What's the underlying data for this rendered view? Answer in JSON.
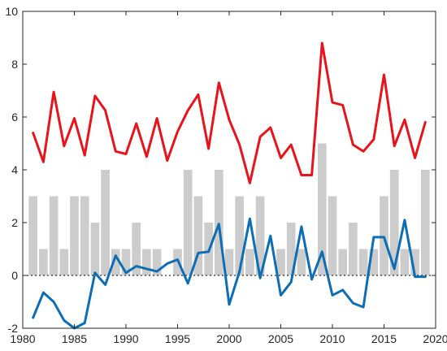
{
  "chart_data": {
    "type": "bar+line",
    "title": "",
    "xlabel": "",
    "ylabel": "",
    "xlim": [
      1980,
      2020
    ],
    "ylim": [
      -2,
      10
    ],
    "grid": false,
    "xticks": [
      1980,
      1985,
      1990,
      1995,
      2000,
      2005,
      2010,
      2015,
      2020
    ],
    "yticks": [
      -2,
      0,
      2,
      4,
      6,
      8,
      10
    ],
    "bars": {
      "color": "#cccccc",
      "x": [
        1981,
        1982,
        1983,
        1984,
        1985,
        1986,
        1987,
        1988,
        1989,
        1990,
        1991,
        1992,
        1993,
        1994,
        1995,
        1996,
        1997,
        1998,
        1999,
        2000,
        2001,
        2002,
        2003,
        2004,
        2005,
        2006,
        2007,
        2008,
        2009,
        2010,
        2011,
        2012,
        2013,
        2014,
        2015,
        2016,
        2017,
        2018,
        2019
      ],
      "values": [
        3,
        1,
        3,
        1,
        3,
        3,
        2,
        4,
        1,
        1,
        2,
        1,
        1,
        0,
        1,
        4,
        3,
        2,
        4,
        1,
        3,
        1,
        3,
        0,
        1,
        2,
        1,
        0,
        5,
        3,
        1,
        2,
        1,
        1,
        3,
        4,
        1,
        1,
        4
      ]
    },
    "series": [
      {
        "color": "#e8141c",
        "x": [
          1981,
          1982,
          1983,
          1984,
          1985,
          1986,
          1987,
          1988,
          1989,
          1990,
          1991,
          1992,
          1993,
          1994,
          1995,
          1996,
          1997,
          1998,
          1999,
          2000,
          2001,
          2002,
          2003,
          2004,
          2005,
          2006,
          2007,
          2008,
          2009,
          2010,
          2011,
          2012,
          2013,
          2014,
          2015,
          2016,
          2017,
          2018,
          2019
        ],
        "values": [
          5.4,
          4.3,
          6.95,
          4.9,
          5.95,
          4.55,
          6.8,
          6.25,
          4.7,
          4.6,
          5.75,
          4.5,
          5.95,
          4.35,
          5.45,
          6.25,
          6.85,
          4.8,
          7.3,
          5.9,
          4.95,
          3.5,
          5.25,
          5.6,
          4.45,
          4.95,
          3.8,
          3.8,
          8.8,
          6.55,
          6.45,
          4.95,
          4.7,
          5.15,
          7.6,
          4.9,
          5.9,
          4.45,
          5.8
        ]
      },
      {
        "color": "#0e6eb5",
        "x": [
          1981,
          1982,
          1983,
          1984,
          1985,
          1986,
          1987,
          1988,
          1989,
          1990,
          1991,
          1992,
          1993,
          1994,
          1995,
          1996,
          1997,
          1998,
          1999,
          2000,
          2001,
          2002,
          2003,
          2004,
          2005,
          2006,
          2007,
          2008,
          2009,
          2010,
          2011,
          2012,
          2013,
          2014,
          2015,
          2016,
          2017,
          2018,
          2019
        ],
        "values": [
          -1.6,
          -0.65,
          -1.0,
          -1.7,
          -2.0,
          -1.8,
          0.1,
          -0.35,
          0.75,
          0.1,
          0.35,
          0.25,
          0.15,
          0.45,
          0.6,
          -0.3,
          0.85,
          0.9,
          1.95,
          -1.1,
          0.15,
          2.15,
          -0.1,
          1.5,
          -0.75,
          -0.25,
          1.85,
          -0.15,
          0.9,
          -0.75,
          -0.55,
          -1.05,
          -1.2,
          1.45,
          1.45,
          0.25,
          2.1,
          -0.05,
          -0.05
        ]
      }
    ]
  }
}
